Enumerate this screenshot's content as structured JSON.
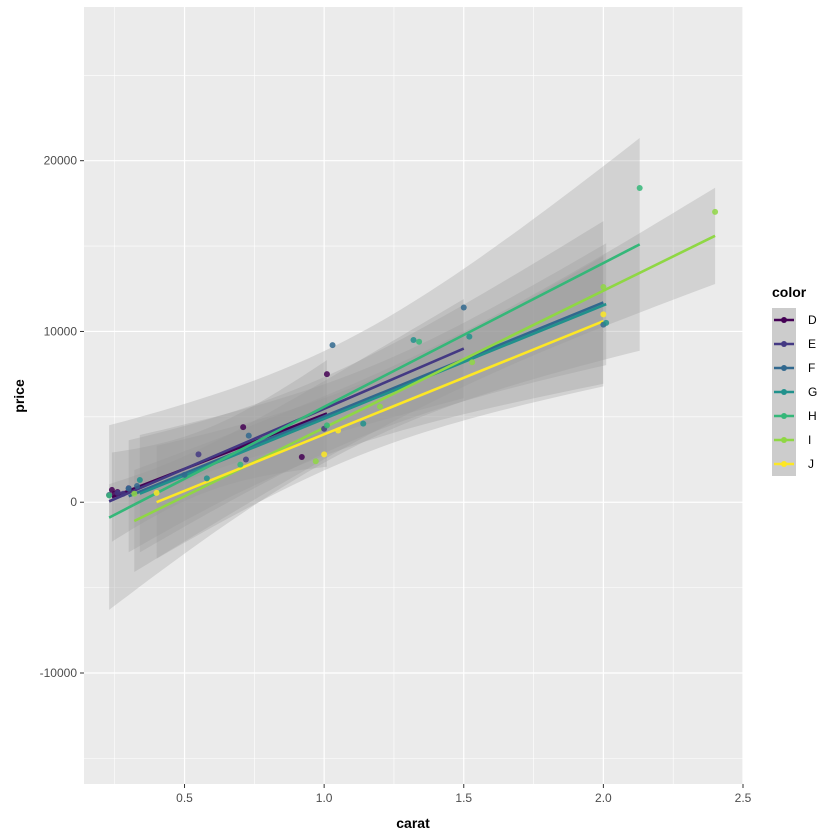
{
  "chart_data": {
    "type": "scatter",
    "xlabel": "carat",
    "ylabel": "price",
    "xlim": [
      0.14,
      2.5
    ],
    "ylim": [
      -16500,
      29000
    ],
    "x_ticks": [
      0.5,
      1.0,
      1.5,
      2.0,
      2.5
    ],
    "x_tick_labels": [
      "0.5",
      "1.0",
      "1.5",
      "2.0",
      "2.5"
    ],
    "y_ticks": [
      -10000,
      0,
      10000,
      20000
    ],
    "y_tick_labels": [
      "-10000",
      "0",
      "10000",
      "20000"
    ],
    "grid": true,
    "legend": {
      "title": "color",
      "position": "right",
      "entries": [
        "D",
        "E",
        "F",
        "G",
        "H",
        "I",
        "J"
      ]
    },
    "series": [
      {
        "name": "D",
        "color": "#440154",
        "points": [
          [
            0.24,
            720
          ],
          [
            0.25,
            500
          ],
          [
            0.26,
            600
          ],
          [
            0.71,
            4400
          ],
          [
            0.92,
            2650
          ],
          [
            1.01,
            7500
          ]
        ],
        "fit": {
          "x0": 0.24,
          "x1": 1.01,
          "y0": 300,
          "y1": 5200
        }
      },
      {
        "name": "E",
        "color": "#443983",
        "points": [
          [
            0.23,
            420
          ],
          [
            0.26,
            550
          ],
          [
            0.28,
            500
          ],
          [
            0.3,
            820
          ],
          [
            0.55,
            2800
          ],
          [
            0.72,
            2500
          ],
          [
            1.0,
            4300
          ]
        ],
        "fit": {
          "x0": 0.23,
          "x1": 1.5,
          "y0": 50,
          "y1": 9000
        }
      },
      {
        "name": "F",
        "color": "#31688e",
        "points": [
          [
            0.3,
            800
          ],
          [
            0.33,
            950
          ],
          [
            0.5,
            1600
          ],
          [
            0.73,
            3900
          ],
          [
            1.03,
            9200
          ],
          [
            1.5,
            11400
          ],
          [
            2.0,
            10400
          ]
        ],
        "fit": {
          "x0": 0.3,
          "x1": 2.0,
          "y0": 350,
          "y1": 11700
        }
      },
      {
        "name": "G",
        "color": "#21918c",
        "points": [
          [
            0.34,
            1300
          ],
          [
            0.58,
            1400
          ],
          [
            1.14,
            4600
          ],
          [
            1.32,
            9500
          ],
          [
            1.52,
            9700
          ],
          [
            2.01,
            10500
          ]
        ],
        "fit": {
          "x0": 0.34,
          "x1": 2.01,
          "y0": 500,
          "y1": 11600
        }
      },
      {
        "name": "H",
        "color": "#35b779",
        "points": [
          [
            0.23,
            400
          ],
          [
            0.7,
            2200
          ],
          [
            1.01,
            4500
          ],
          [
            1.34,
            9400
          ],
          [
            2.13,
            18400
          ]
        ],
        "fit": {
          "x0": 0.23,
          "x1": 2.13,
          "y0": -900,
          "y1": 15100
        }
      },
      {
        "name": "I",
        "color": "#8fd744",
        "points": [
          [
            0.32,
            500
          ],
          [
            0.97,
            2400
          ],
          [
            1.2,
            5600
          ],
          [
            1.53,
            8200
          ],
          [
            2.0,
            12600
          ],
          [
            2.4,
            17000
          ]
        ],
        "fit": {
          "x0": 0.32,
          "x1": 2.4,
          "y0": -1100,
          "y1": 15600
        }
      },
      {
        "name": "J",
        "color": "#fde725",
        "points": [
          [
            0.4,
            550
          ],
          [
            1.0,
            2800
          ],
          [
            1.05,
            4200
          ],
          [
            2.0,
            11000
          ]
        ],
        "fit": {
          "x0": 0.4,
          "x1": 2.0,
          "y0": 0,
          "y1": 10600
        }
      }
    ]
  }
}
